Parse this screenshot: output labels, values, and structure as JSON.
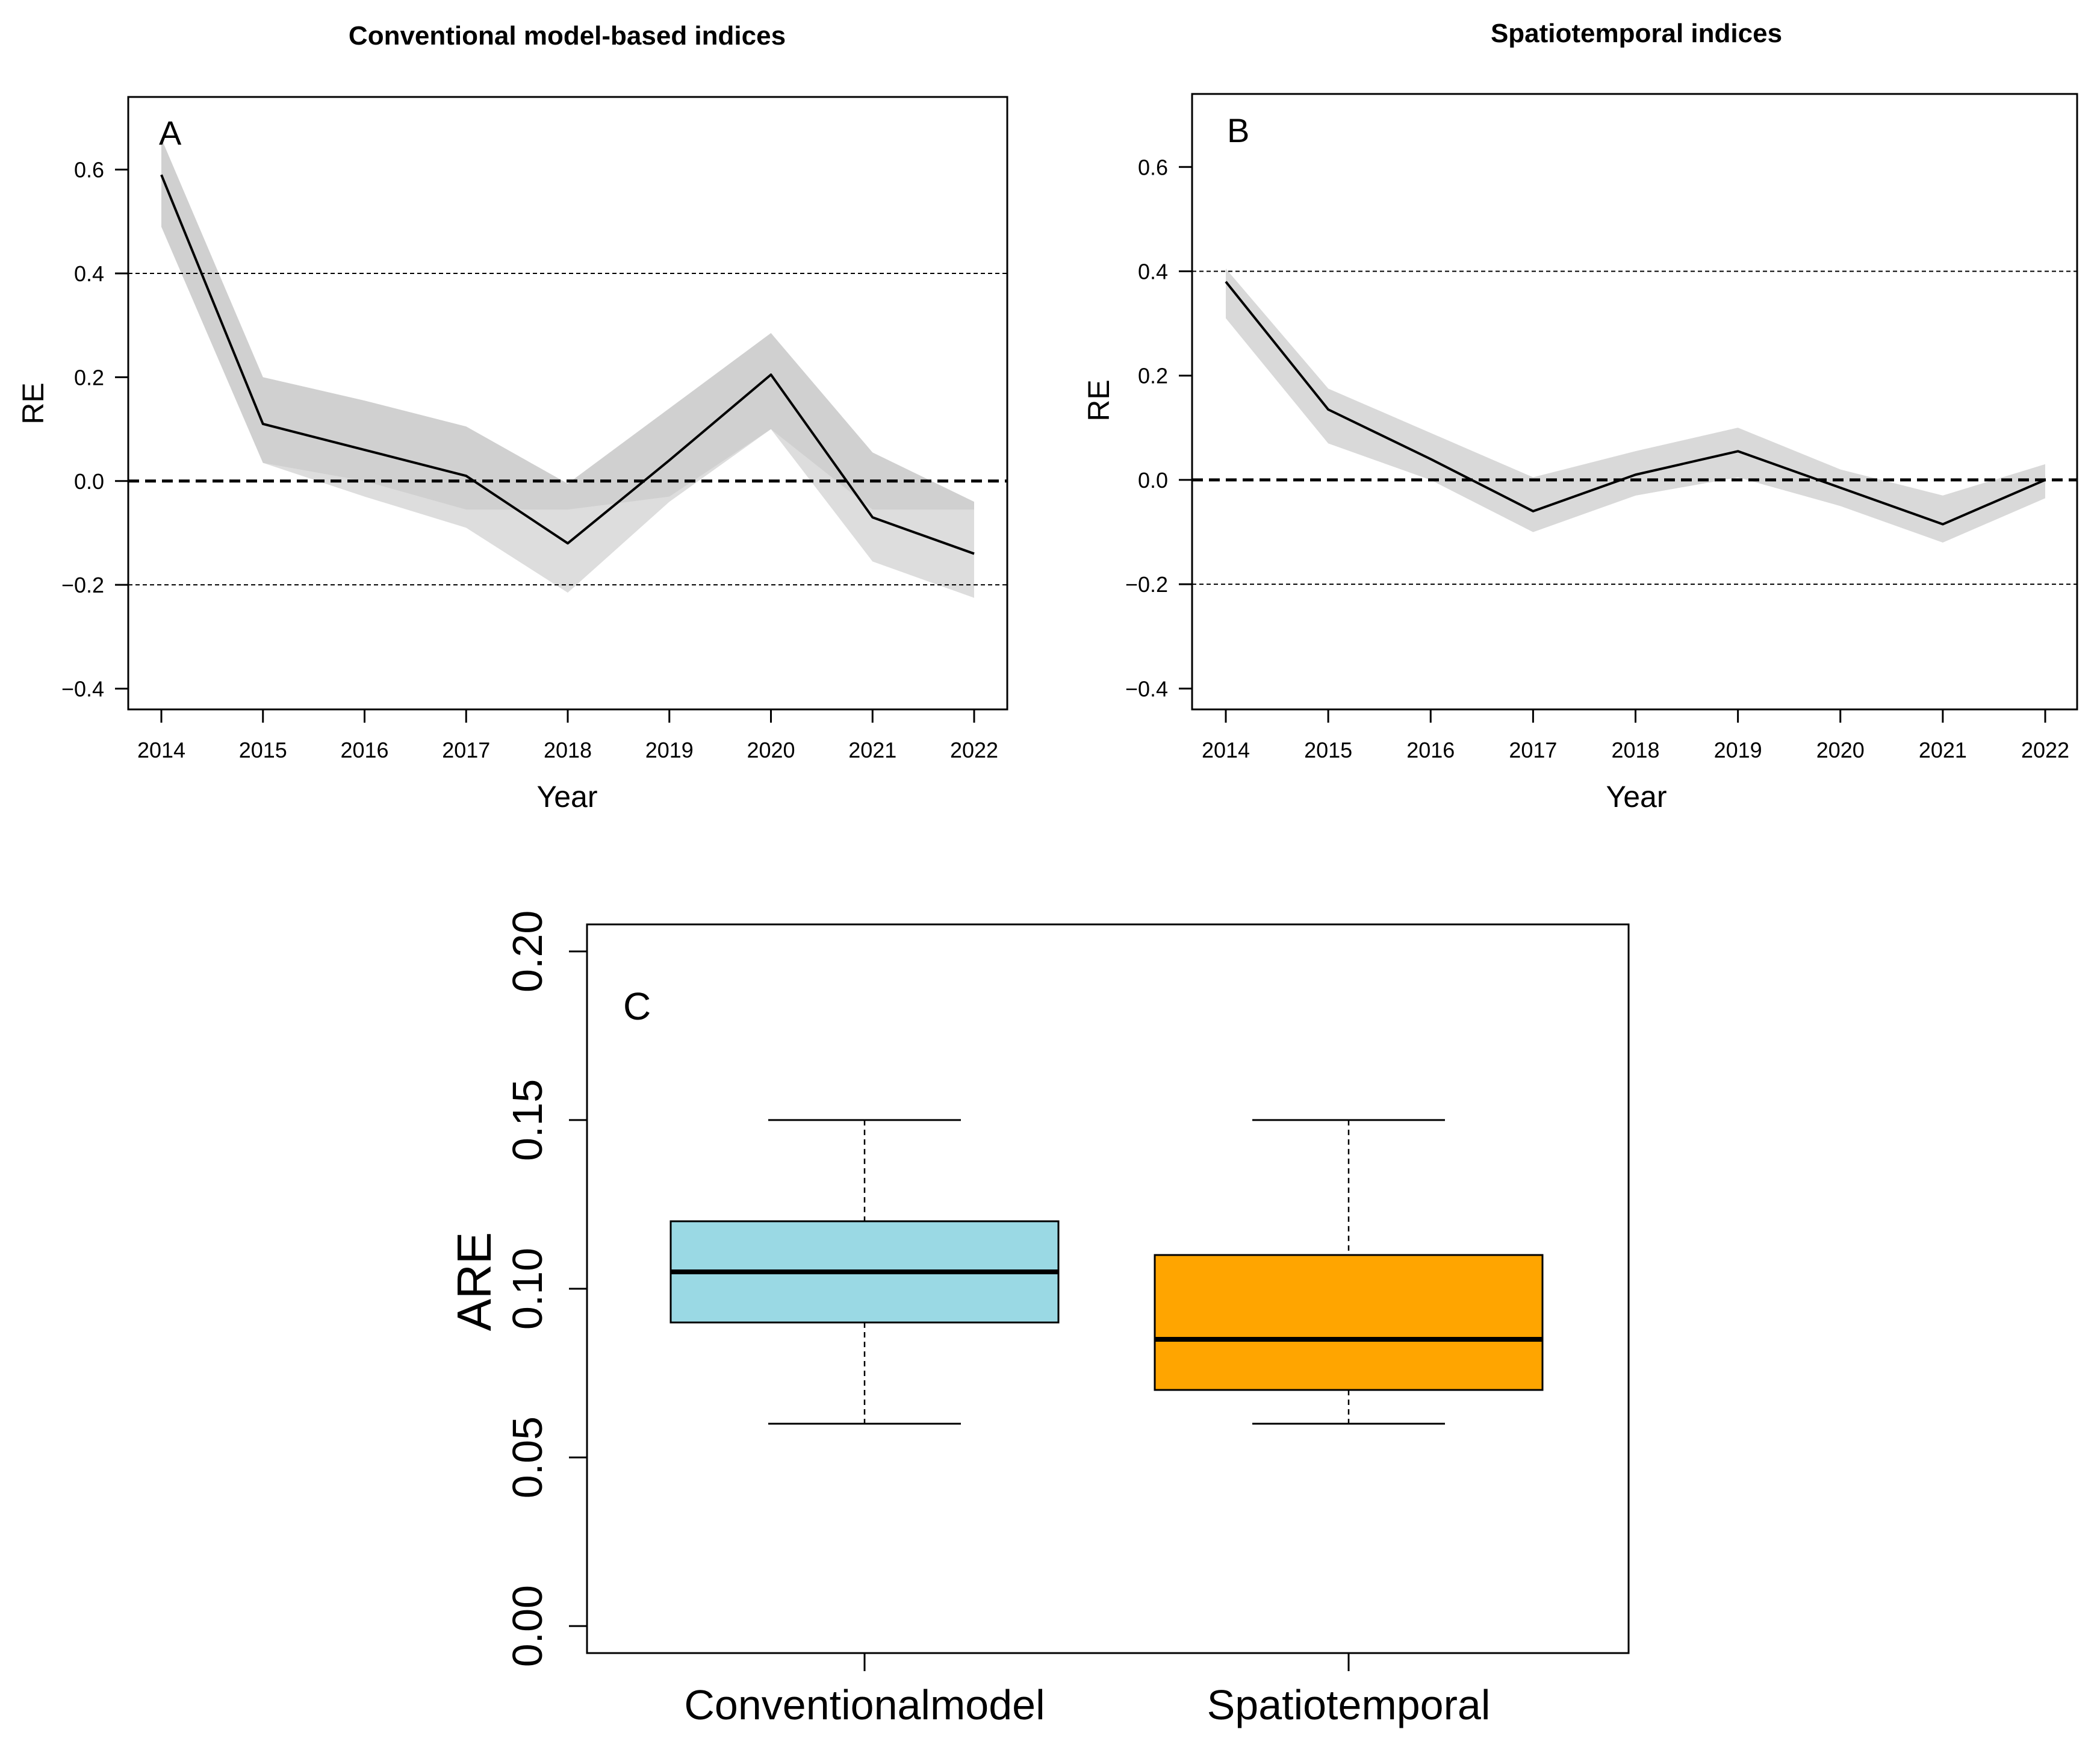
{
  "chart_data": [
    {
      "type": "line",
      "panel": "A",
      "title": "Conventional model-based indices",
      "xlabel": "Year",
      "ylabel": "RE",
      "x": [
        2014,
        2015,
        2016,
        2017,
        2018,
        2019,
        2020,
        2021,
        2022
      ],
      "xtick_labels": [
        "2014",
        "2015",
        "2016",
        "2017",
        "2018",
        "2019",
        "2020",
        "2021",
        "2022"
      ],
      "ylim": [
        -0.44,
        0.74
      ],
      "yticks": [
        -0.4,
        -0.2,
        0.0,
        0.2,
        0.4,
        0.6
      ],
      "ytick_labels": [
        "−0.4",
        "−0.2",
        "0.0",
        "0.2",
        "0.4",
        "0.6"
      ],
      "series": [
        {
          "name": "RE",
          "values": [
            0.59,
            0.11,
            0.06,
            0.01,
            -0.12,
            0.04,
            0.205,
            -0.07,
            -0.14
          ]
        }
      ],
      "band_outer": {
        "upper": [
          0.66,
          0.2,
          0.155,
          0.105,
          -0.005,
          0.14,
          0.285,
          0.055,
          -0.04
        ],
        "lower": [
          0.49,
          0.035,
          -0.03,
          -0.09,
          -0.215,
          -0.04,
          0.1,
          -0.155,
          -0.225
        ]
      },
      "band_inner": {
        "upper": [
          0.66,
          0.2,
          0.155,
          0.105,
          -0.005,
          0.14,
          0.285,
          0.055,
          -0.04
        ],
        "lower": [
          0.49,
          0.035,
          0.0,
          -0.055,
          -0.055,
          -0.03,
          0.1,
          -0.055,
          -0.055
        ]
      },
      "reference_lines": {
        "bold_dashed": 0.0,
        "thin_dashed": [
          0.4,
          -0.2
        ]
      },
      "band_colors": {
        "outer": "#dddddd",
        "inner": "#d0d0d0"
      }
    },
    {
      "type": "line",
      "panel": "B",
      "title": "Spatiotemporal indices",
      "xlabel": "Year",
      "ylabel": "RE",
      "x": [
        2014,
        2015,
        2016,
        2017,
        2018,
        2019,
        2020,
        2021,
        2022
      ],
      "xtick_labels": [
        "2014",
        "2015",
        "2016",
        "2017",
        "2018",
        "2019",
        "2020",
        "2021",
        "2022"
      ],
      "ylim": [
        -0.44,
        0.74
      ],
      "yticks": [
        -0.4,
        -0.2,
        0.0,
        0.2,
        0.4,
        0.6
      ],
      "ytick_labels": [
        "−0.4",
        "−0.2",
        "0.0",
        "0.2",
        "0.4",
        "0.6"
      ],
      "series": [
        {
          "name": "RE",
          "values": [
            0.38,
            0.135,
            0.04,
            -0.06,
            0.01,
            0.055,
            -0.015,
            -0.085,
            0.0
          ]
        }
      ],
      "band_outer": {
        "upper": [
          0.405,
          0.175,
          0.09,
          0.005,
          0.055,
          0.1,
          0.02,
          -0.03,
          0.03
        ],
        "lower": [
          0.31,
          0.07,
          0.0,
          -0.1,
          -0.03,
          0.005,
          -0.05,
          -0.12,
          -0.035
        ]
      },
      "band_inner": {
        "upper": [
          0.405,
          0.175,
          0.09,
          0.005,
          0.055,
          0.1,
          0.02,
          -0.03,
          0.03
        ],
        "lower": [
          0.31,
          0.07,
          0.0,
          -0.1,
          -0.03,
          0.005,
          -0.05,
          -0.12,
          -0.035
        ]
      },
      "reference_lines": {
        "bold_dashed": 0.0,
        "thin_dashed": [
          0.4,
          -0.2
        ]
      },
      "band_colors": {
        "outer": "#d9d9d9",
        "inner": "#d9d9d9"
      }
    },
    {
      "type": "box",
      "panel": "C",
      "ylabel": "ARE",
      "ylim": [
        -0.008,
        0.208
      ],
      "yticks": [
        0.0,
        0.05,
        0.1,
        0.15,
        0.2
      ],
      "ytick_labels": [
        "0.00",
        "0.05",
        "0.10",
        "0.15",
        "0.20"
      ],
      "categories": [
        "Conventionalmodel",
        "Spatiotemporal"
      ],
      "boxes": [
        {
          "name": "Conventionalmodel",
          "min": 0.06,
          "q1": 0.09,
          "median": 0.105,
          "q3": 0.12,
          "max": 0.15,
          "color": "#9ad9e4"
        },
        {
          "name": "Spatiotemporal",
          "min": 0.06,
          "q1": 0.07,
          "median": 0.085,
          "q3": 0.11,
          "max": 0.15,
          "color": "#ffa500"
        }
      ]
    }
  ]
}
